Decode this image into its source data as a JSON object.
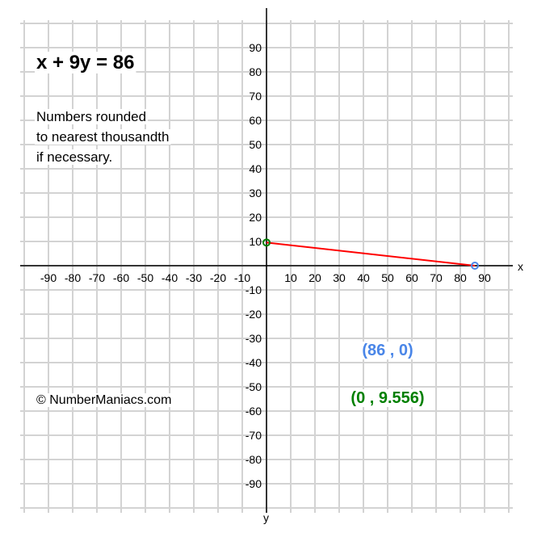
{
  "title": "x + 9y = 86",
  "note_lines": [
    "Numbers rounded",
    "to nearest thousandth",
    "if necessary."
  ],
  "copyright": "© NumberManiacs.com",
  "colors": {
    "line": "#ff0000",
    "x_intercept": "#4a86e8",
    "y_intercept": "#008000",
    "grid": "#d3d3d3",
    "axis": "#000000"
  },
  "chart_data": {
    "type": "line",
    "equation": "x + 9y = 86",
    "xlabel": "x",
    "ylabel": "y",
    "xlim": [
      -100,
      100
    ],
    "ylim": [
      -100,
      100
    ],
    "grid": true,
    "x_ticks": [
      -90,
      -80,
      -70,
      -60,
      -50,
      -40,
      -30,
      -20,
      -10,
      10,
      20,
      30,
      40,
      50,
      60,
      70,
      80,
      90
    ],
    "y_ticks": [
      90,
      80,
      70,
      60,
      50,
      40,
      30,
      20,
      10,
      -10,
      -20,
      -30,
      -40,
      -50,
      -60,
      -70,
      -80,
      -90
    ],
    "segment": [
      [
        0,
        9.556
      ],
      [
        86,
        0
      ]
    ],
    "points": [
      {
        "x": 86,
        "y": 0,
        "label": "(86 , 0)",
        "color": "#4a86e8"
      },
      {
        "x": 0,
        "y": 9.556,
        "label": "(0 , 9.556)",
        "color": "#008000"
      }
    ]
  }
}
